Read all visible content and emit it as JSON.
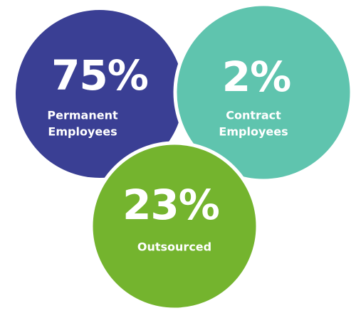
{
  "items": [
    {
      "value": "75%",
      "label": [
        "Permanent",
        "Employees"
      ]
    },
    {
      "value": "2%",
      "label": [
        "Contract",
        "Employees"
      ]
    },
    {
      "value": "23%",
      "label": [
        "Outsourced"
      ]
    }
  ]
}
